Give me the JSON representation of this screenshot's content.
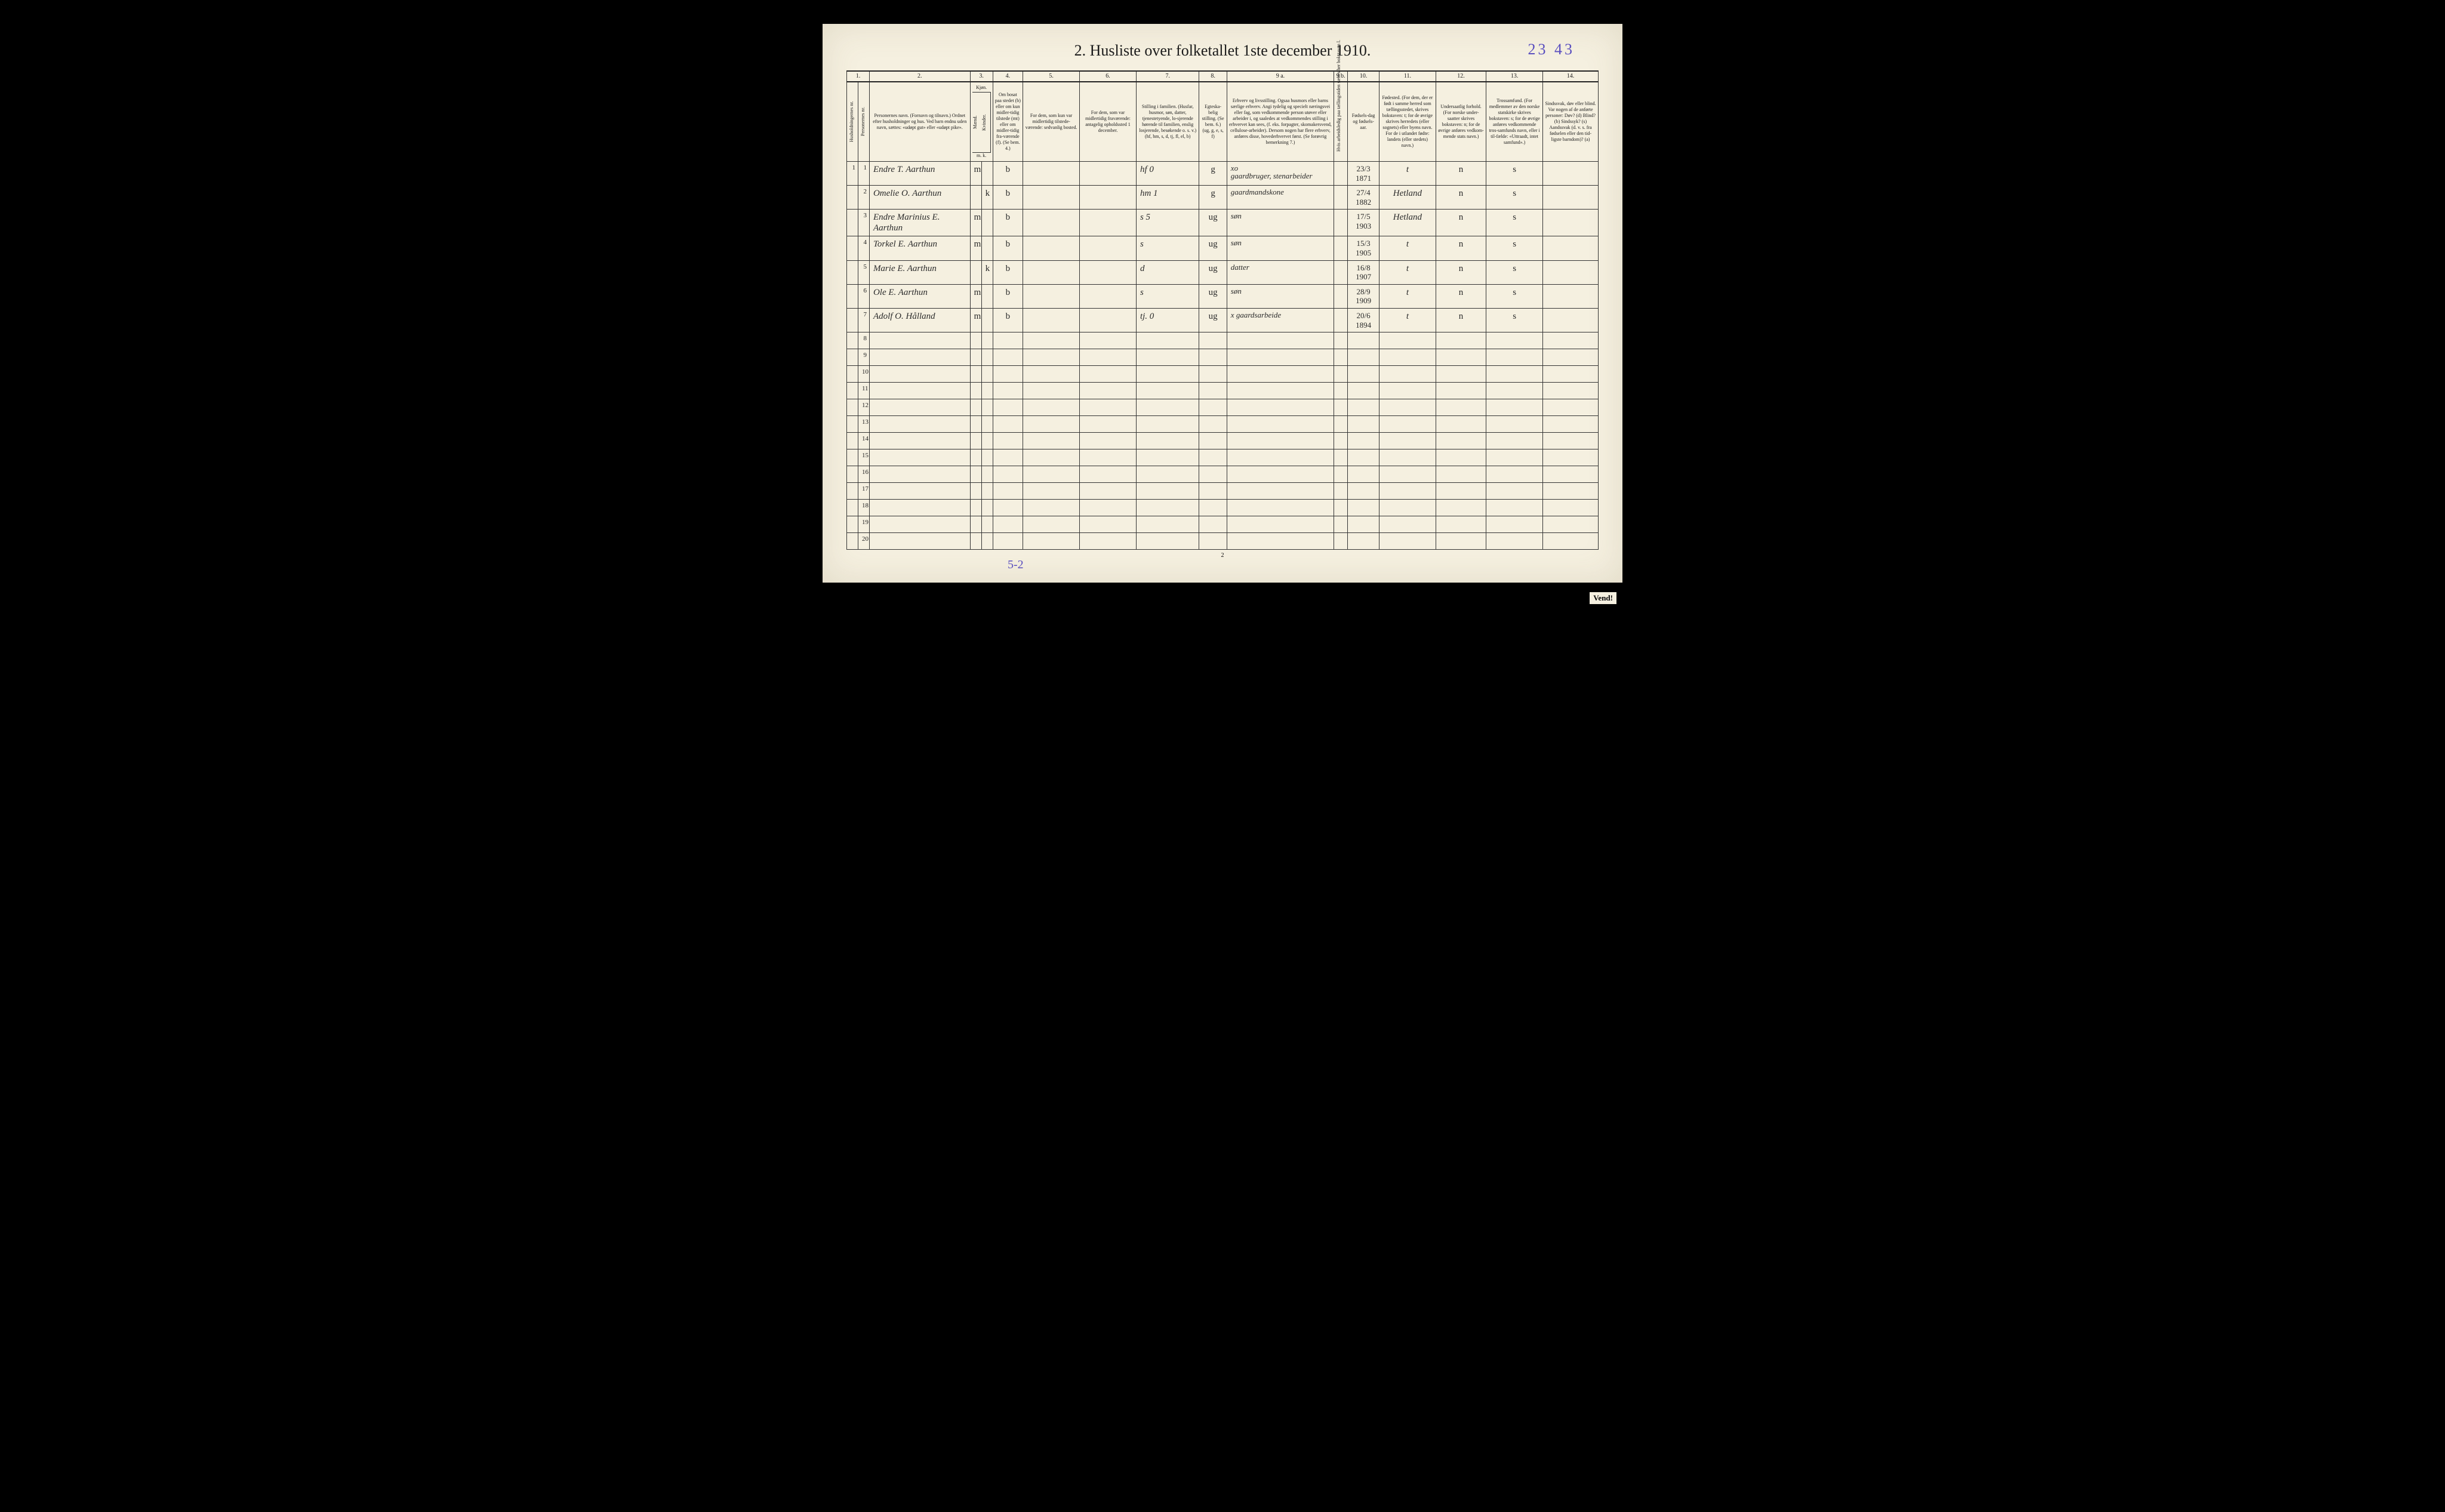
{
  "title": "2.  Husliste over folketallet 1ste december 1910.",
  "annotation_topright": "23 43",
  "annotation_bottom": "5-2",
  "page_number": "2",
  "vend": "Vend!",
  "colors": {
    "paper": "#f5f0e0",
    "ink": "#1a1a1a",
    "handwriting": "#2a2a2a",
    "pencil_blue": "#5a4fbf",
    "border": "#333333",
    "background": "#000000"
  },
  "colnums": [
    "1.",
    "2.",
    "3.",
    "4.",
    "5.",
    "6.",
    "7.",
    "8.",
    "9 a.",
    "9 b.",
    "10.",
    "11.",
    "12.",
    "13.",
    "14."
  ],
  "headers": {
    "c1a": "Husholdningernes nr.",
    "c1b": "Personernes nr.",
    "c2": "Personernes navn.\n(Fornavn og tilnavn.)\nOrdnet efter husholdninger og hus.\nVed barn endnu uden navn, sættes: «udøpt gut» eller «udøpt pike».",
    "c3": "Kjøn.",
    "c3m": "Mænd.",
    "c3k": "Kvinder.",
    "c3foot": "m.  k.",
    "c4": "Om bosat paa stedet (b) eller om kun midler-tidig tilstede (mt) eller om midler-tidig fra-værende (f).\n(Se bem. 4.)",
    "c5": "For dem, som kun var midlertidig tilstede-værende:\nsedvanlig bosted.",
    "c6": "For dem, som var midlertidig fraværende:\nantagelig opholdssted 1 december.",
    "c7": "Stilling i familien.\n(Husfar, husmor, søn, datter, tjenestetyende, lo-sjerende hørende til familien, enslig losjerende, besøkende o. s. v.)\n(hf, hm, s, d, tj, fl, el, b)",
    "c8": "Egteska-belig stilling.\n(Se bem. 6.)\n(ug, g, e, s, f)",
    "c9a": "Erhverv og livsstilling.\nOgsaa husmors eller barns særlige erhverv. Angi tydelig og specielt næringsvei eller fag, som vedkommende person utøver eller arbeider i, og saaledes at vedkommendes stilling i erhvervet kan sees, (f. eks. forpagter, skomakersvend, cellulose-arbeider). Dersom nogen har flere erhverv, anføres disse, hovederhvervet først.\n(Se forøvrig bemerkning 7.)",
    "c9b": "Hvis arbeidsledig paa tællingstiden sættes her bokstaven l.",
    "c10": "Fødsels-dag og fødsels-aar.",
    "c11": "Fødested.\n(For dem, der er født i samme herred som tællingsstedet, skrives bokstaven: t; for de øvrige skrives herredets (eller sognets) eller byens navn. For de i utlandet fødte: landets (eller stedets) navn.)",
    "c12": "Undersaatlig forhold.\n(For norske under-saatter skrives bokstaven: n; for de øvrige anføres vedkom-mende stats navn.)",
    "c13": "Trossamfund.\n(For medlemmer av den norske statskirke skrives bokstaven: s; for de øvrige anføres vedkommende tros-samfunds navn, eller i til-fælde: «Uttraadt, intet samfund».)",
    "c14": "Sindssvak, døv eller blind.\nVar nogen af de anførte personer:\nDøv? (d)\nBlind? (b)\nSindssyk? (s)\nAandssvak (d. v. s. fra fødselen eller den tid-ligste barndom)? (a)"
  },
  "rows": [
    {
      "hh": "1",
      "pn": "1",
      "name": "Endre T. Aarthun",
      "m": "m",
      "k": "",
      "bos": "b",
      "c5": "",
      "c6": "",
      "fam": "hf   0",
      "egte": "g",
      "erhv": "xo\ngaardbruger, stenarbeider",
      "c9b": "",
      "dob": "23/3 1871",
      "fsted": "t",
      "c12": "n",
      "c13": "s",
      "c14": ""
    },
    {
      "hh": "",
      "pn": "2",
      "name": "Omelie O. Aarthun",
      "m": "",
      "k": "k",
      "bos": "b",
      "c5": "",
      "c6": "",
      "fam": "hm   1",
      "egte": "g",
      "erhv": "gaardmandskone",
      "c9b": "",
      "dob": "27/4 1882",
      "fsted": "Hetland",
      "c12": "n",
      "c13": "s",
      "c14": ""
    },
    {
      "hh": "",
      "pn": "3",
      "name": "Endre Marinius E. Aarthun",
      "m": "m",
      "k": "",
      "bos": "b",
      "c5": "",
      "c6": "",
      "fam": "s   5",
      "egte": "ug",
      "erhv": "søn",
      "c9b": "",
      "dob": "17/5 1903",
      "fsted": "Hetland",
      "c12": "n",
      "c13": "s",
      "c14": ""
    },
    {
      "hh": "",
      "pn": "4",
      "name": "Torkel E. Aarthun",
      "m": "m",
      "k": "",
      "bos": "b",
      "c5": "",
      "c6": "",
      "fam": "s",
      "egte": "ug",
      "erhv": "søn",
      "c9b": "",
      "dob": "15/3 1905",
      "fsted": "t",
      "c12": "n",
      "c13": "s",
      "c14": ""
    },
    {
      "hh": "",
      "pn": "5",
      "name": "Marie E. Aarthun",
      "m": "",
      "k": "k",
      "bos": "b",
      "c5": "",
      "c6": "",
      "fam": "d",
      "egte": "ug",
      "erhv": "datter",
      "c9b": "",
      "dob": "16/8 1907",
      "fsted": "t",
      "c12": "n",
      "c13": "s",
      "c14": ""
    },
    {
      "hh": "",
      "pn": "6",
      "name": "Ole E. Aarthun",
      "m": "m",
      "k": "",
      "bos": "b",
      "c5": "",
      "c6": "",
      "fam": "s",
      "egte": "ug",
      "erhv": "søn",
      "c9b": "",
      "dob": "28/9 1909",
      "fsted": "t",
      "c12": "n",
      "c13": "s",
      "c14": ""
    },
    {
      "hh": "",
      "pn": "7",
      "name": "Adolf O. Hålland",
      "m": "m",
      "k": "",
      "bos": "b",
      "c5": "",
      "c6": "",
      "fam": "tj.   0",
      "egte": "ug",
      "erhv": "x gaardsarbeide",
      "c9b": "",
      "dob": "20/6 1894",
      "fsted": "t",
      "c12": "n",
      "c13": "s",
      "c14": ""
    }
  ],
  "empty_row_start": 8,
  "empty_row_end": 20
}
